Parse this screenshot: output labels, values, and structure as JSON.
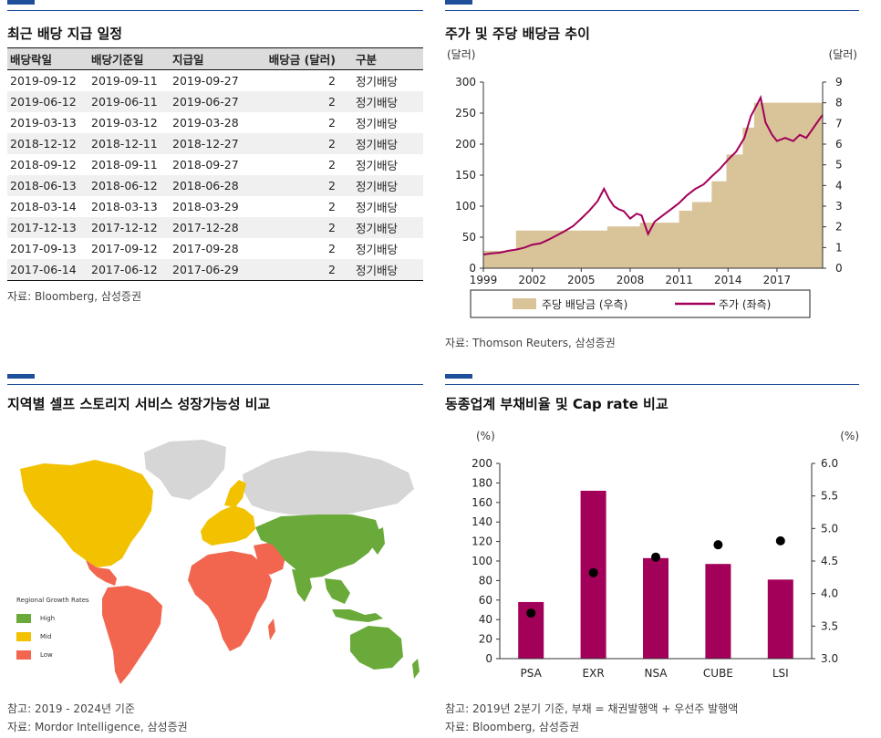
{
  "dividend_schedule": {
    "title": "최근 배당 지급 일정",
    "columns": [
      "배당락일",
      "배당기준일",
      "지급일",
      "배당금 (달러)",
      "구분"
    ],
    "rows": [
      [
        "2019-09-12",
        "2019-09-11",
        "2019-09-27",
        "2",
        "정기배당"
      ],
      [
        "2019-06-12",
        "2019-06-11",
        "2019-06-27",
        "2",
        "정기배당"
      ],
      [
        "2019-03-13",
        "2019-03-12",
        "2019-03-28",
        "2",
        "정기배당"
      ],
      [
        "2018-12-12",
        "2018-12-11",
        "2018-12-27",
        "2",
        "정기배당"
      ],
      [
        "2018-09-12",
        "2018-09-11",
        "2018-09-27",
        "2",
        "정기배당"
      ],
      [
        "2018-06-13",
        "2018-06-12",
        "2018-06-28",
        "2",
        "정기배당"
      ],
      [
        "2018-03-14",
        "2018-03-13",
        "2018-03-29",
        "2",
        "정기배당"
      ],
      [
        "2017-12-13",
        "2017-12-12",
        "2017-12-28",
        "2",
        "정기배당"
      ],
      [
        "2017-09-13",
        "2017-09-12",
        "2017-09-28",
        "2",
        "정기배당"
      ],
      [
        "2017-06-14",
        "2017-06-12",
        "2017-06-29",
        "2",
        "정기배당"
      ]
    ],
    "source": "자료: Bloomberg, 삼성증권"
  },
  "price_panel": {
    "title": "주가 및 주당 배당금 추이",
    "source": "자료: Thomson Reuters, 삼성증권"
  },
  "map_panel": {
    "title": "지역별 셀프 스토리지 서비스 성장가능성 비교",
    "legend_title": "Regional Growth Rates",
    "legend": [
      {
        "label": "High",
        "color": "#6aaa3a"
      },
      {
        "label": "Mid",
        "color": "#f2c200"
      },
      {
        "label": "Low",
        "color": "#f26650"
      }
    ],
    "note": "참고: 2019 - 2024년 기준",
    "source": "자료: Mordor Intelligence, 삼성증권"
  },
  "debt_panel": {
    "title": "동종업계 부채비율 및 Cap rate 비교",
    "note": "참고: 2019년 2분기 기준, 부채 = 채권발행액 + 우선주 발행액",
    "source": "자료: Bloomberg, 삼성증권"
  },
  "chart_data": [
    {
      "type": "line",
      "ylabel": "(달러)",
      "y2label": "(달러)",
      "ylim": [
        0,
        300
      ],
      "y2lim": [
        0,
        9
      ],
      "yticks": [
        0,
        50,
        100,
        150,
        200,
        250,
        300
      ],
      "y2ticks": [
        0,
        1,
        2,
        3,
        4,
        5,
        6,
        7,
        8,
        9
      ],
      "xticks": [
        "1999",
        "2002",
        "2005",
        "2008",
        "2011",
        "2014",
        "2017"
      ],
      "xlim": [
        1999,
        2019.8
      ],
      "colors": {
        "dividend": "#d8c498",
        "price": "#a3005a"
      },
      "series": [
        {
          "name": "주당 배당금 (우측)",
          "kind": "area-step",
          "axis": "right",
          "x": [
            1999,
            2001.0,
            2006.6,
            2008.6,
            2011.0,
            2011.8,
            2013.0,
            2013.9,
            2014.9,
            2015.6,
            2019.8
          ],
          "values": [
            0.84,
            1.82,
            2.02,
            2.2,
            2.78,
            3.2,
            4.2,
            5.5,
            6.8,
            8.0,
            8.0
          ]
        },
        {
          "name": "주가 (좌측)",
          "kind": "line",
          "axis": "left",
          "x": [
            1999.0,
            1999.5,
            2000.0,
            2000.5,
            2001.0,
            2001.5,
            2002.0,
            2002.5,
            2003.0,
            2003.5,
            2004.0,
            2004.5,
            2005.0,
            2005.5,
            2006.0,
            2006.4,
            2006.7,
            2007.0,
            2007.3,
            2007.6,
            2008.0,
            2008.4,
            2008.7,
            2009.1,
            2009.5,
            2010.0,
            2010.5,
            2011.0,
            2011.5,
            2012.0,
            2012.5,
            2013.0,
            2013.5,
            2014.0,
            2014.5,
            2015.0,
            2015.4,
            2015.8,
            2016.0,
            2016.3,
            2016.7,
            2017.0,
            2017.5,
            2018.0,
            2018.4,
            2018.8,
            2019.2,
            2019.6,
            2019.8
          ],
          "values": [
            22,
            24,
            25,
            28,
            30,
            33,
            38,
            40,
            46,
            53,
            60,
            68,
            80,
            93,
            108,
            128,
            112,
            100,
            95,
            92,
            80,
            88,
            85,
            55,
            75,
            85,
            95,
            105,
            118,
            128,
            135,
            148,
            160,
            175,
            188,
            210,
            245,
            265,
            275,
            235,
            215,
            205,
            210,
            205,
            215,
            210,
            225,
            240,
            247
          ]
        }
      ]
    },
    {
      "type": "bar",
      "ylabel": "(%)",
      "y2label": "(%)",
      "ylim": [
        0,
        200
      ],
      "y2lim": [
        3.0,
        6.0
      ],
      "yticks": [
        0,
        20,
        40,
        60,
        80,
        100,
        120,
        140,
        160,
        180,
        200
      ],
      "y2ticks": [
        "3.0",
        "3.5",
        "4.0",
        "4.5",
        "5.0",
        "5.5",
        "6.0"
      ],
      "categories": [
        "PSA",
        "EXR",
        "NSA",
        "CUBE",
        "LSI"
      ],
      "colors": {
        "bar": "#a3005a",
        "dot": "#000000"
      },
      "series": [
        {
          "kind": "bar",
          "axis": "left",
          "values": [
            58,
            172,
            103,
            97,
            81
          ]
        },
        {
          "kind": "scatter",
          "axis": "right",
          "values": [
            3.7,
            4.32,
            4.56,
            4.75,
            4.81
          ]
        }
      ]
    }
  ]
}
